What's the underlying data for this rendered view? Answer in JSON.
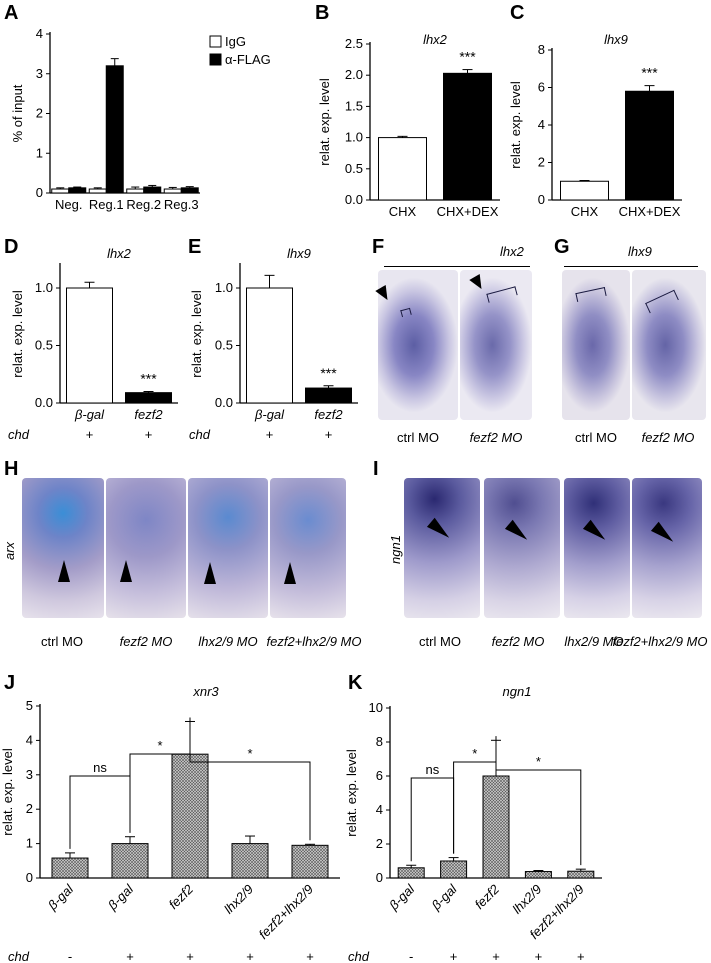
{
  "letters": {
    "A": "A",
    "B": "B",
    "C": "C",
    "D": "D",
    "E": "E",
    "F": "F",
    "G": "G",
    "H": "H",
    "I": "I",
    "J": "J",
    "K": "K"
  },
  "chart_data": [
    {
      "id": "A",
      "type": "bar",
      "title": "",
      "ylabel": "% of input",
      "ylim": [
        0,
        4
      ],
      "yticks": [
        "0",
        "1",
        "2",
        "3",
        "4"
      ],
      "categories": [
        "Neg.",
        "Reg.1",
        "Reg.2",
        "Reg.3"
      ],
      "series": [
        {
          "name": "IgG",
          "color": "#ffffff",
          "values": [
            0.1,
            0.1,
            0.1,
            0.1
          ],
          "err": [
            0.03,
            0.03,
            0.05,
            0.04
          ]
        },
        {
          "name": "α-FLAG",
          "color": "#000000",
          "values": [
            0.13,
            3.2,
            0.15,
            0.13
          ],
          "err": [
            0.02,
            0.18,
            0.04,
            0.03
          ]
        }
      ]
    },
    {
      "id": "B",
      "type": "bar",
      "title": "lhx2",
      "ylabel": "relat. exp. level",
      "ylim": [
        0,
        2.5
      ],
      "yticks": [
        "0.0",
        "0.5",
        "1.0",
        "1.5",
        "2.0",
        "2.5"
      ],
      "categories": [
        "CHX",
        "CHX+DEX"
      ],
      "values": [
        1.0,
        2.03
      ],
      "err": [
        0.02,
        0.06
      ],
      "colors": [
        "#ffffff",
        "#000000"
      ],
      "annotations": [
        "",
        "***"
      ]
    },
    {
      "id": "C",
      "type": "bar",
      "title": "lhx9",
      "ylabel": "relat. exp. level",
      "ylim": [
        0,
        8
      ],
      "yticks": [
        "0",
        "2",
        "4",
        "6",
        "8"
      ],
      "categories": [
        "CHX",
        "CHX+DEX"
      ],
      "values": [
        1.0,
        5.8
      ],
      "err": [
        0.04,
        0.3
      ],
      "colors": [
        "#ffffff",
        "#000000"
      ],
      "annotations": [
        "",
        "***"
      ]
    },
    {
      "id": "D",
      "type": "bar",
      "title": "lhx2",
      "ylabel": "relat. exp. level",
      "ylim": [
        0,
        1.2
      ],
      "yticks": [
        "0.0",
        "0.5",
        "1.0"
      ],
      "categories": [
        "β-gal",
        "fezf2"
      ],
      "values": [
        1.0,
        0.09
      ],
      "err": [
        0.05,
        0.01
      ],
      "colors": [
        "#ffffff",
        "#000000"
      ],
      "annotations": [
        "",
        "***"
      ],
      "chd_label": "chd",
      "chd": [
        "+",
        "+"
      ]
    },
    {
      "id": "E",
      "type": "bar",
      "title": "lhx9",
      "ylabel": "relat. exp. level",
      "ylim": [
        0,
        1.2
      ],
      "yticks": [
        "0.0",
        "0.5",
        "1.0"
      ],
      "categories": [
        "β-gal",
        "fezf2"
      ],
      "values": [
        1.0,
        0.13
      ],
      "err": [
        0.11,
        0.02
      ],
      "colors": [
        "#ffffff",
        "#000000"
      ],
      "annotations": [
        "",
        "***"
      ],
      "chd_label": "chd",
      "chd": [
        "+",
        "+"
      ]
    },
    {
      "id": "J",
      "type": "bar",
      "title": "xnr3",
      "ylabel": "relat. exp. level",
      "ylim": [
        0,
        5
      ],
      "yticks": [
        "0",
        "1",
        "2",
        "3",
        "4",
        "5"
      ],
      "categories": [
        "β-gal",
        "β-gal",
        "fezf2",
        "lhx2/9",
        "fezf2+lhx2/9"
      ],
      "values": [
        0.58,
        1.0,
        3.6,
        1.0,
        0.95
      ],
      "err": [
        0.15,
        0.2,
        0.95,
        0.22,
        0.03
      ],
      "brackets": [
        {
          "a": 0,
          "b": 1,
          "label": "ns"
        },
        {
          "a": 1,
          "b": 2,
          "label": "*"
        },
        {
          "a": 2,
          "b": 4,
          "label": "*"
        }
      ],
      "chd_label": "chd",
      "chd": [
        "-",
        "+",
        "+",
        "+",
        "+"
      ]
    },
    {
      "id": "K",
      "type": "bar",
      "title": "ngn1",
      "ylabel": "relat. exp. level",
      "ylim": [
        0,
        10
      ],
      "yticks": [
        "0",
        "2",
        "4",
        "6",
        "8",
        "10"
      ],
      "categories": [
        "β-gal",
        "β-gal",
        "fezf2",
        "lhx2/9",
        "fezf2+lhx2/9"
      ],
      "values": [
        0.6,
        1.0,
        6.0,
        0.38,
        0.4
      ],
      "err": [
        0.15,
        0.2,
        2.1,
        0.06,
        0.12
      ],
      "brackets": [
        {
          "a": 0,
          "b": 1,
          "label": "ns"
        },
        {
          "a": 1,
          "b": 2,
          "label": "*"
        },
        {
          "a": 2,
          "b": 4,
          "label": "*"
        }
      ],
      "chd_label": "chd",
      "chd": [
        "-",
        "+",
        "+",
        "+",
        "+"
      ]
    }
  ],
  "panel_F": {
    "gene": "lhx2",
    "captions": [
      "ctrl MO",
      "fezf2 MO"
    ]
  },
  "panel_G": {
    "gene": "lhx9",
    "captions": [
      "ctrl MO",
      "fezf2 MO"
    ]
  },
  "panel_H": {
    "gene": "arx",
    "captions": [
      "ctrl MO",
      "fezf2 MO",
      "lhx2/9 MO",
      "fezf2+lhx2/9 MO"
    ]
  },
  "panel_I": {
    "gene": "ngn1",
    "captions": [
      "ctrl MO",
      "fezf2 MO",
      "lhx2/9 MO",
      "fezf2+lhx2/9 MO"
    ]
  }
}
